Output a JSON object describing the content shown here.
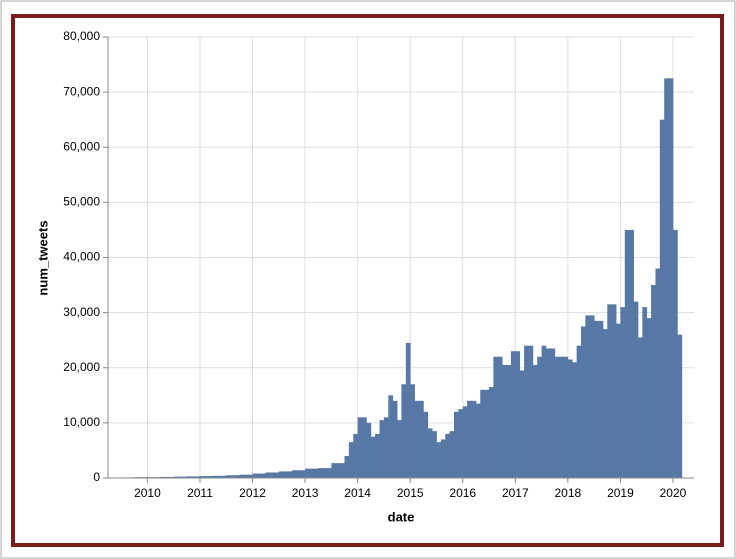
{
  "chart_data": {
    "type": "histogram",
    "x_label": "date",
    "y_label": "num_tweets",
    "color": "#5778a4",
    "grid": true,
    "xlim": [
      2009.25,
      2020.4
    ],
    "xticks": [
      2010,
      2011,
      2012,
      2013,
      2014,
      2015,
      2016,
      2017,
      2018,
      2019,
      2020
    ],
    "ylim": [
      0,
      80000
    ],
    "yticks": [
      0,
      {
        "value": 10000,
        "label": "10,000"
      },
      {
        "value": 20000,
        "label": "20,000"
      },
      {
        "value": 30000,
        "label": "30,000"
      },
      {
        "value": 40000,
        "label": "40,000"
      },
      {
        "value": 50000,
        "label": "50,000"
      },
      {
        "value": 60000,
        "label": "60,000"
      },
      {
        "value": 70000,
        "label": "70,000"
      },
      {
        "value": 80000,
        "label": "80,000"
      }
    ],
    "bins": [
      2009.5,
      2009.75,
      2010,
      2010.25,
      2010.5,
      2010.75,
      2011,
      2011.25,
      2011.5,
      2011.75,
      2012,
      2012.25,
      2012.5,
      2012.75,
      2013,
      2013.25,
      2013.5,
      2013.75,
      2013.833,
      2013.917,
      2014,
      2014.083,
      2014.167,
      2014.25,
      2014.333,
      2014.417,
      2014.5,
      2014.583,
      2014.667,
      2014.75,
      2014.833,
      2014.917,
      2015,
      2015.083,
      2015.167,
      2015.25,
      2015.333,
      2015.417,
      2015.5,
      2015.583,
      2015.667,
      2015.75,
      2015.833,
      2015.917,
      2016,
      2016.083,
      2016.167,
      2016.25,
      2016.333,
      2016.417,
      2016.5,
      2016.583,
      2016.667,
      2016.75,
      2016.833,
      2016.917,
      2017,
      2017.083,
      2017.167,
      2017.25,
      2017.333,
      2017.417,
      2017.5,
      2017.583,
      2017.667,
      2017.75,
      2017.833,
      2017.917,
      2018,
      2018.083,
      2018.167,
      2018.25,
      2018.333,
      2018.417,
      2018.5,
      2018.583,
      2018.667,
      2018.75,
      2018.833,
      2018.917,
      2019,
      2019.083,
      2019.167,
      2019.25,
      2019.333,
      2019.417,
      2019.5,
      2019.583,
      2019.667,
      2019.75,
      2019.833,
      2019.917,
      2020,
      2020.083,
      2020.167
    ],
    "values": [
      100,
      150,
      150,
      200,
      250,
      300,
      350,
      400,
      500,
      600,
      800,
      1000,
      1200,
      1400,
      1700,
      1800,
      2700,
      4000,
      6500,
      8000,
      11000,
      11000,
      10000,
      7500,
      8000,
      10500,
      11000,
      15000,
      14000,
      10500,
      17000,
      24500,
      17000,
      14000,
      14000,
      12000,
      9000,
      8500,
      6500,
      7000,
      8000,
      8500,
      12000,
      12500,
      13000,
      14000,
      14000,
      13500,
      16000,
      16000,
      16500,
      22000,
      22000,
      20500,
      20500,
      23000,
      23000,
      19500,
      24000,
      24000,
      20500,
      22000,
      24000,
      23500,
      23500,
      22000,
      22000,
      22000,
      21500,
      21000,
      24000,
      27500,
      29500,
      29500,
      28500,
      28500,
      27000,
      31500,
      31500,
      28000,
      31000,
      45000,
      45000,
      32000,
      25500,
      31000,
      29000,
      35000,
      38000,
      65000,
      72500,
      72500,
      45000,
      26000
    ]
  }
}
